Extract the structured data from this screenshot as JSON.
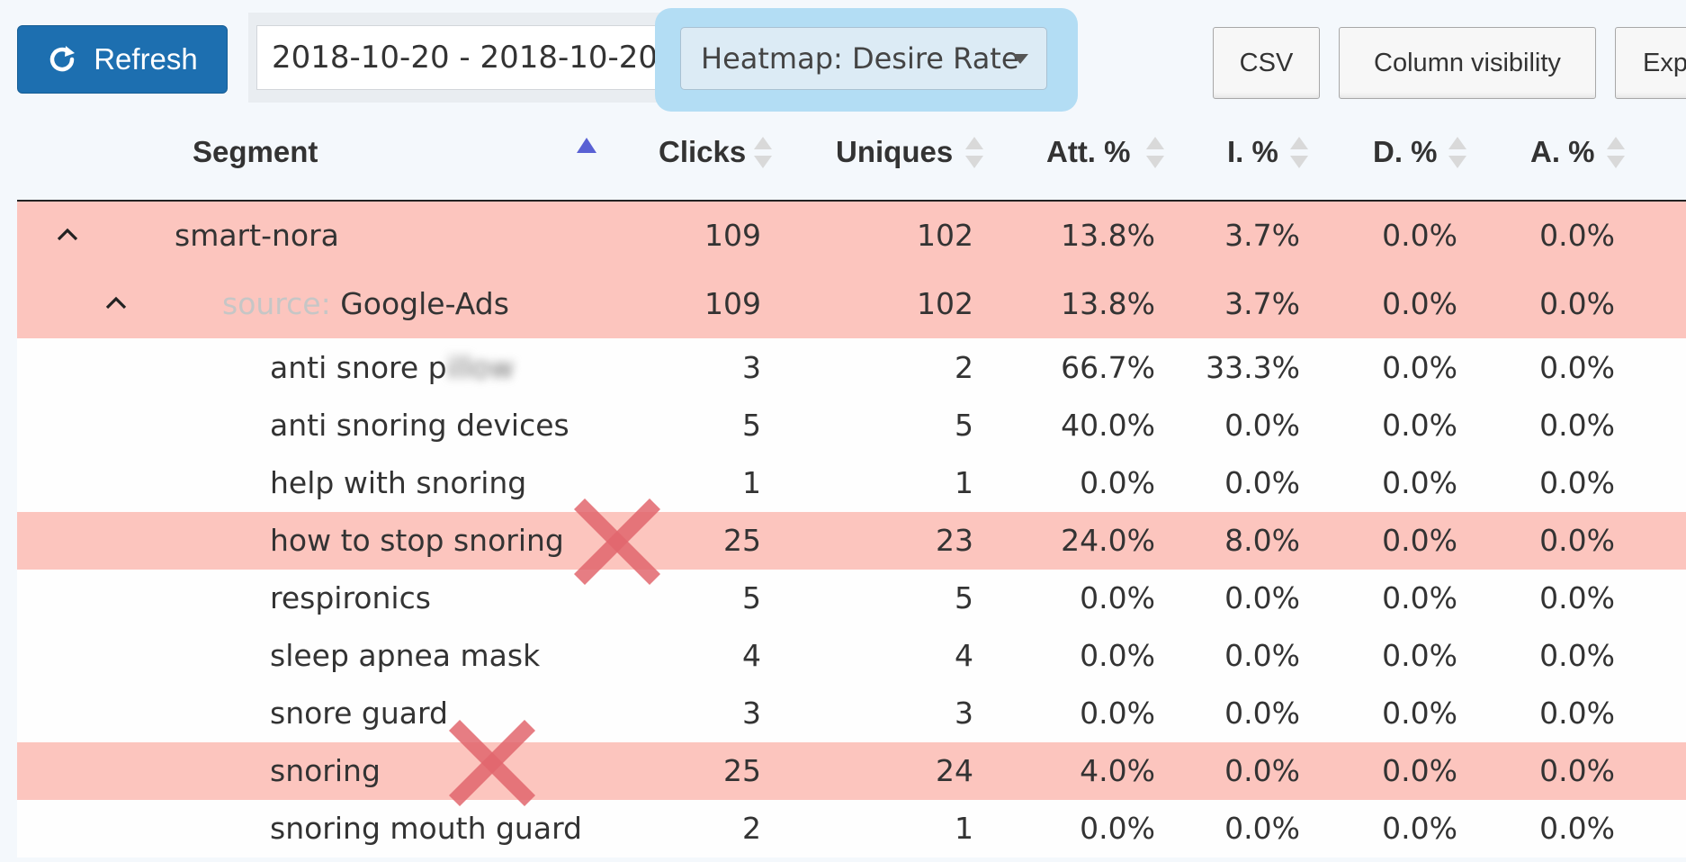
{
  "toolbar": {
    "refresh_label": "Refresh",
    "date_range_value": "2018-10-20 - 2018-10-20",
    "heatmap_label": "Heatmap: Desire Rate",
    "csv_label": "CSV",
    "column_visibility_label": "Column visibility",
    "export_label": "Exp"
  },
  "table": {
    "headers": {
      "segment": "Segment",
      "clicks": "Clicks",
      "uniques": "Uniques",
      "att": "Att. %",
      "i": "I. %",
      "d": "D. %",
      "a": "A. %"
    },
    "rows": [
      {
        "prefix": "",
        "segment": "smart-nora",
        "clicks": "109",
        "uniques": "102",
        "att": "13.8%",
        "i": "3.7%",
        "d": "0.0%",
        "a": "0.0%"
      },
      {
        "prefix": "source: ",
        "segment": "Google-Ads",
        "clicks": "109",
        "uniques": "102",
        "att": "13.8%",
        "i": "3.7%",
        "d": "0.0%",
        "a": "0.0%"
      },
      {
        "prefix": "",
        "segment": "anti snore p",
        "segment_blurred": "illow",
        "clicks": "3",
        "uniques": "2",
        "att": "66.7%",
        "i": "33.3%",
        "d": "0.0%",
        "a": "0.0%"
      },
      {
        "prefix": "",
        "segment": "anti snoring devices",
        "clicks": "5",
        "uniques": "5",
        "att": "40.0%",
        "i": "0.0%",
        "d": "0.0%",
        "a": "0.0%"
      },
      {
        "prefix": "",
        "segment": "help with snoring",
        "clicks": "1",
        "uniques": "1",
        "att": "0.0%",
        "i": "0.0%",
        "d": "0.0%",
        "a": "0.0%"
      },
      {
        "prefix": "",
        "segment": "how to stop snoring",
        "clicks": "25",
        "uniques": "23",
        "att": "24.0%",
        "i": "8.0%",
        "d": "0.0%",
        "a": "0.0%"
      },
      {
        "prefix": "",
        "segment": "respironics",
        "clicks": "5",
        "uniques": "5",
        "att": "0.0%",
        "i": "0.0%",
        "d": "0.0%",
        "a": "0.0%"
      },
      {
        "prefix": "",
        "segment": "sleep apnea mask",
        "clicks": "4",
        "uniques": "4",
        "att": "0.0%",
        "i": "0.0%",
        "d": "0.0%",
        "a": "0.0%"
      },
      {
        "prefix": "",
        "segment": "snore guard",
        "clicks": "3",
        "uniques": "3",
        "att": "0.0%",
        "i": "0.0%",
        "d": "0.0%",
        "a": "0.0%"
      },
      {
        "prefix": "",
        "segment": "snoring",
        "clicks": "25",
        "uniques": "24",
        "att": "4.0%",
        "i": "0.0%",
        "d": "0.0%",
        "a": "0.0%"
      },
      {
        "prefix": "",
        "segment": "snoring mouth guard",
        "clicks": "2",
        "uniques": "1",
        "att": "0.0%",
        "i": "0.0%",
        "d": "0.0%",
        "a": "0.0%"
      }
    ]
  },
  "colors": {
    "heatmap_row": "#fcc5be",
    "refresh_button": "#1d6fb0",
    "heatmap_highlight": "#b3ddf4",
    "cross_mark": "#e2676e"
  }
}
